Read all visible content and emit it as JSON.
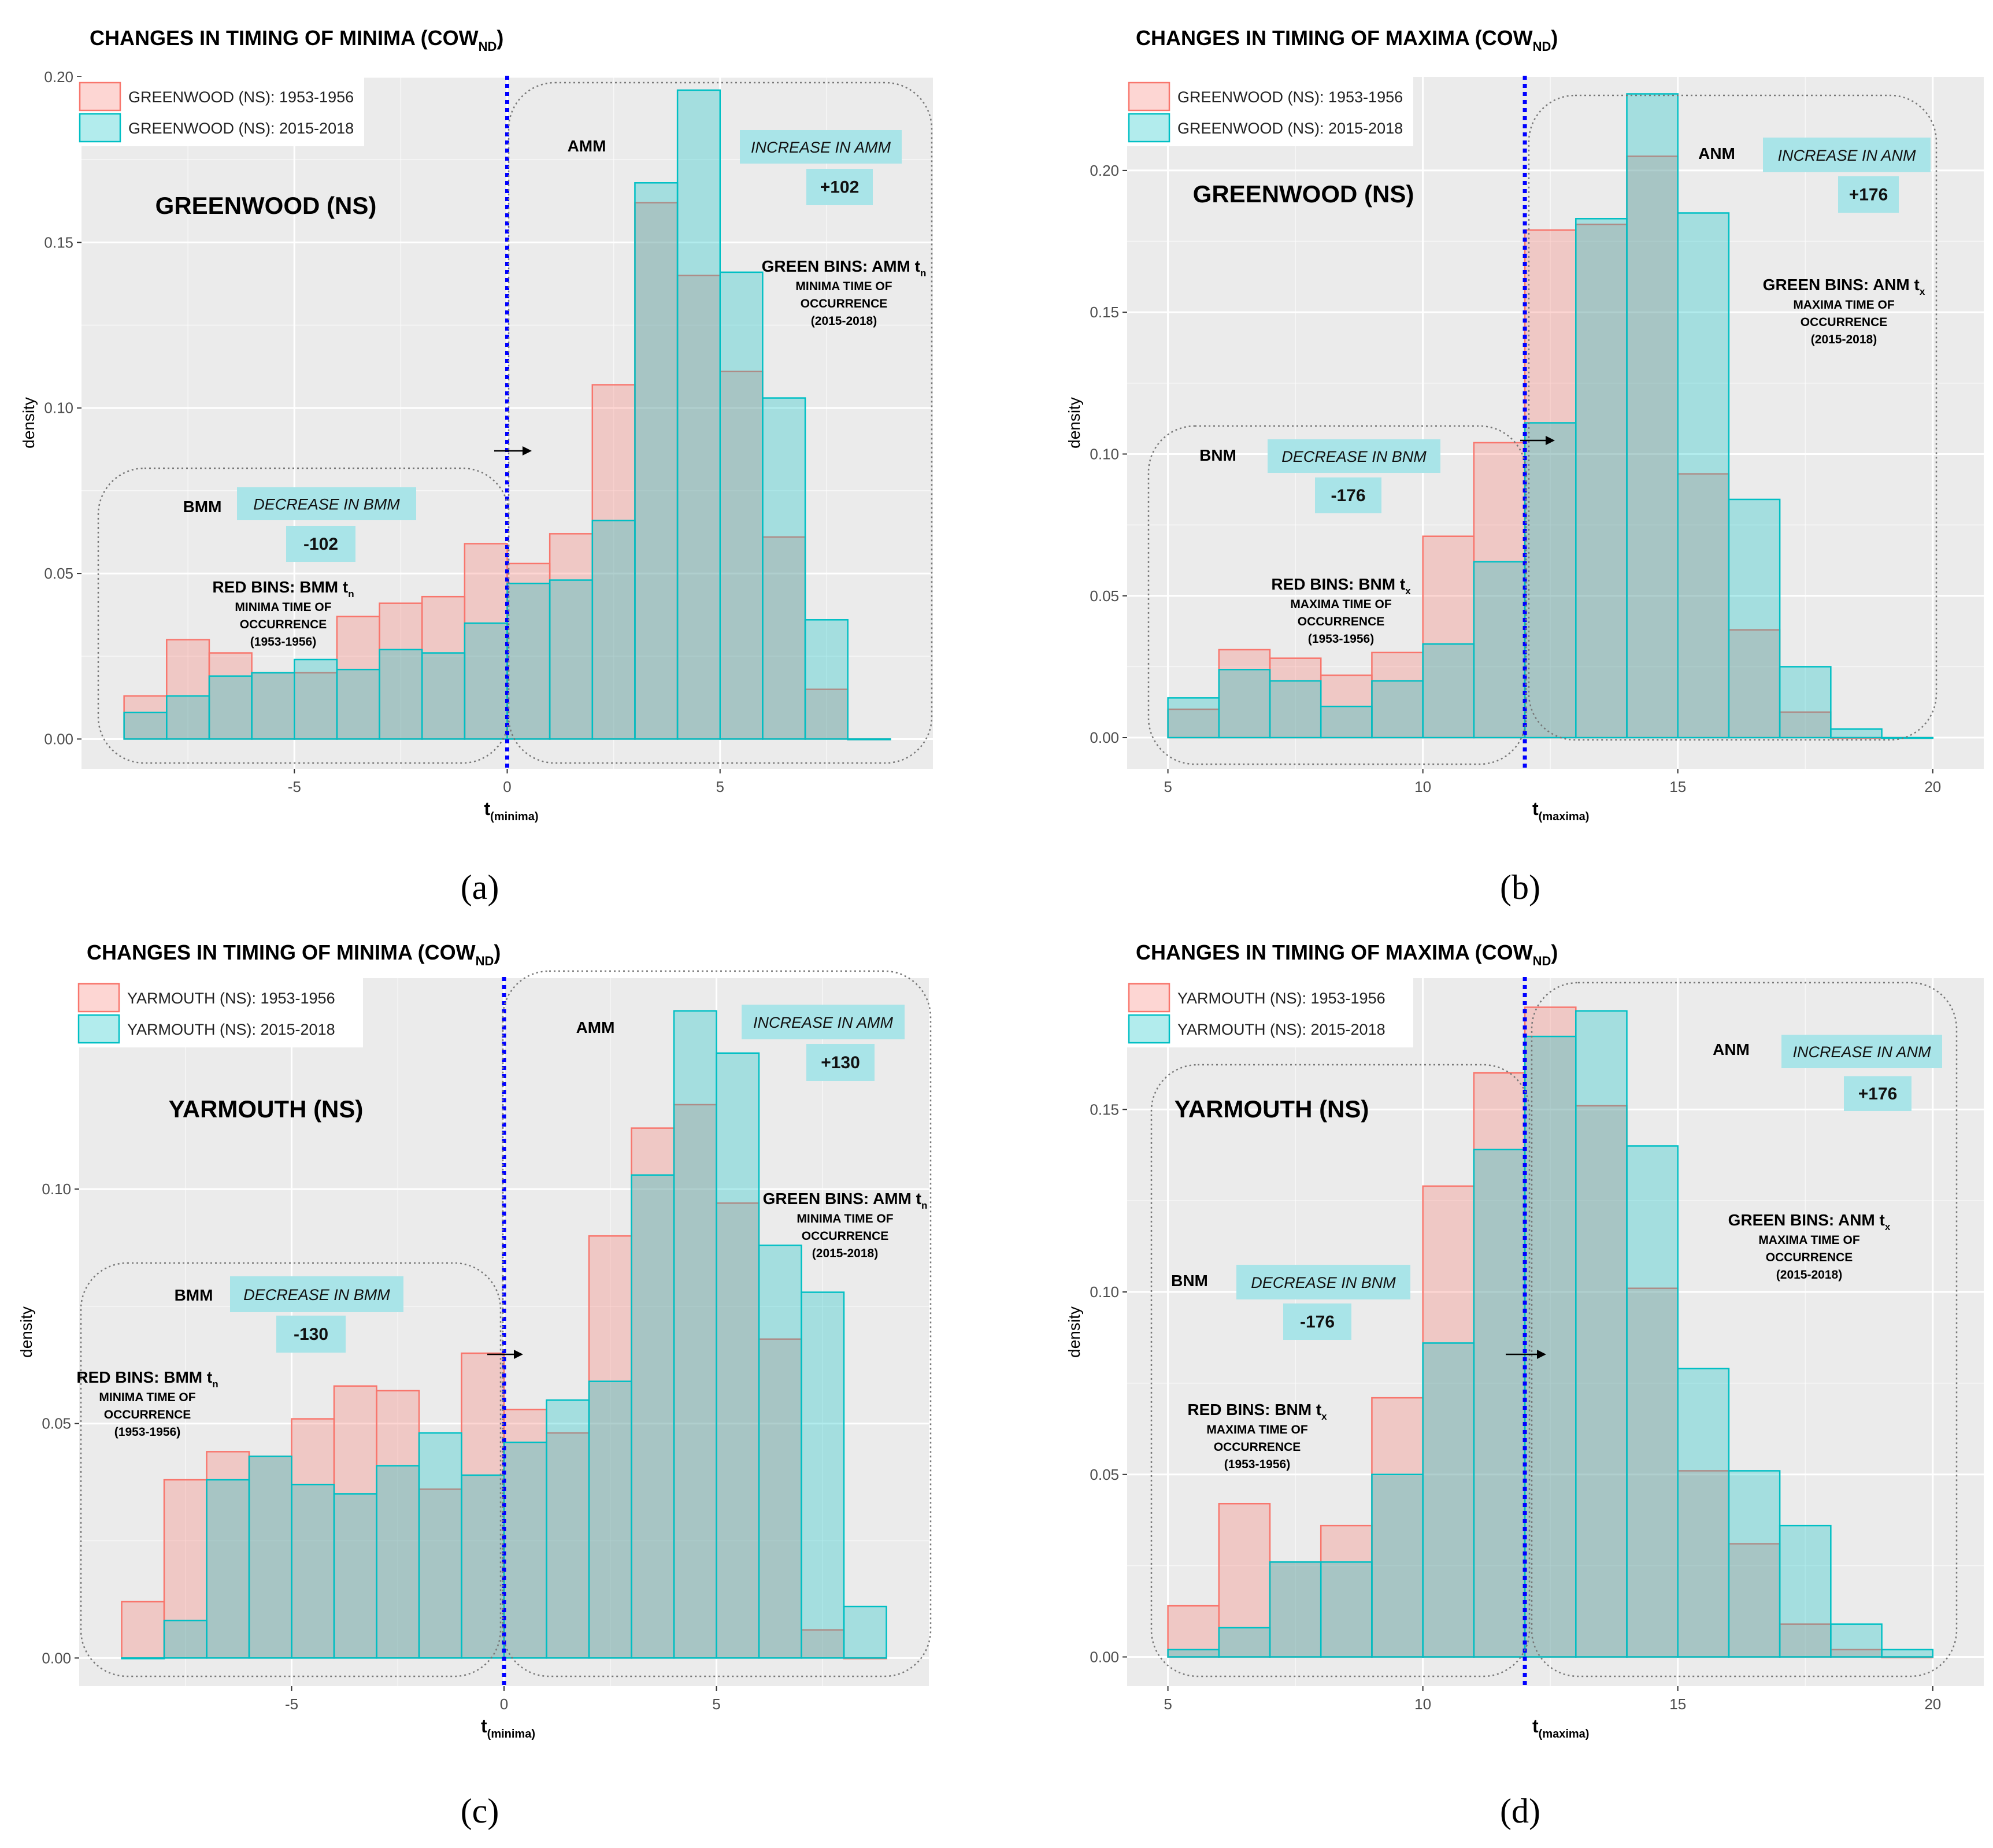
{
  "colors": {
    "series_old_fill": "#F8766D",
    "series_new_fill": "#00BFC4",
    "panel_bg": "#EBEBEB",
    "grid": "#FFFFFF",
    "threshold_line": "#0000FF",
    "label_bg": "#A9E4E8"
  },
  "panels": [
    {
      "tag": "(a)",
      "title_main": "CHANGES IN TIMING OF MINIMA (COW",
      "title_sub": "ND",
      "title_end": ")",
      "xlabel_main": "t",
      "xlabel_sub": "(minima)",
      "ylabel": "density",
      "station_label": "GREENWOOD (NS)",
      "legend": [
        "GREENWOOD (NS): 1953-1956",
        "GREENWOOD (NS): 2015-2018"
      ],
      "left_box": {
        "name": "BMM",
        "change_label": "DECREASE IN BMM",
        "change_value": "-102"
      },
      "right_box": {
        "name": "AMM",
        "change_label": "INCREASE IN AMM",
        "change_value": "+102"
      },
      "red_note": {
        "head": "RED BINS: BMM t",
        "sub": "n",
        "lines": [
          "MINIMA TIME OF",
          "OCCURRENCE",
          "(1953-1956)"
        ]
      },
      "green_note": {
        "head": "GREEN BINS: AMM t",
        "sub": "n",
        "lines": [
          "MINIMA TIME OF",
          "OCCURRENCE",
          "(2015-2018)"
        ]
      },
      "chart_data": {
        "type": "bar",
        "x_bin_starts": [
          -9,
          -8,
          -7,
          -6,
          -5,
          -4,
          -3,
          -2,
          -1,
          0,
          1,
          2,
          3,
          4,
          5,
          6,
          7,
          8
        ],
        "bin_width": 1,
        "series": [
          {
            "name": "GREENWOOD (NS): 1953-1956",
            "values": [
              0.013,
              0.03,
              0.026,
              0.02,
              0.02,
              0.037,
              0.041,
              0.043,
              0.059,
              0.053,
              0.062,
              0.107,
              0.162,
              0.14,
              0.111,
              0.061,
              0.015,
              0.0
            ]
          },
          {
            "name": "GREENWOOD (NS): 2015-2018",
            "values": [
              0.008,
              0.013,
              0.019,
              0.02,
              0.024,
              0.021,
              0.027,
              0.026,
              0.035,
              0.047,
              0.048,
              0.066,
              0.168,
              0.196,
              0.141,
              0.103,
              0.036,
              0.0
            ]
          }
        ],
        "xlim": [
          -10,
          10
        ],
        "ylim": [
          -0.009,
          0.2
        ],
        "xticks": [
          -5,
          0,
          5
        ],
        "xtick_labels": [
          "-5",
          "0",
          "5"
        ],
        "yticks": [
          0.0,
          0.05,
          0.1,
          0.15,
          0.2
        ],
        "ytick_labels": [
          "0.00",
          "0.05",
          "0.10",
          "0.15",
          "0.20"
        ],
        "threshold_x": 0,
        "grid": true,
        "legend_position": "top-left"
      }
    },
    {
      "tag": "(b)",
      "title_main": "CHANGES IN TIMING OF MAXIMA (COW",
      "title_sub": "ND",
      "title_end": ")",
      "xlabel_main": "t",
      "xlabel_sub": "(maxima)",
      "ylabel": "density",
      "station_label": "GREENWOOD (NS)",
      "legend": [
        "GREENWOOD (NS): 1953-1956",
        "GREENWOOD (NS): 2015-2018"
      ],
      "left_box": {
        "name": "BNM",
        "change_label": "DECREASE IN BNM",
        "change_value": "-176"
      },
      "right_box": {
        "name": "ANM",
        "change_label": "INCREASE IN ANM",
        "change_value": "+176"
      },
      "red_note": {
        "head": "RED BINS: BNM t",
        "sub": "x",
        "lines": [
          "MAXIMA TIME OF",
          "OCCURRENCE",
          "(1953-1956)"
        ]
      },
      "green_note": {
        "head": "GREEN BINS: ANM t",
        "sub": "x",
        "lines": [
          "MAXIMA TIME OF",
          "OCCURRENCE",
          "(2015-2018)"
        ]
      },
      "chart_data": {
        "type": "bar",
        "x_bin_starts": [
          5,
          6,
          7,
          8,
          9,
          10,
          11,
          12,
          13,
          14,
          15,
          16,
          17,
          18,
          19
        ],
        "bin_width": 1,
        "series": [
          {
            "name": "GREENWOOD (NS): 1953-1956",
            "values": [
              0.01,
              0.031,
              0.028,
              0.022,
              0.03,
              0.071,
              0.104,
              0.179,
              0.181,
              0.205,
              0.093,
              0.038,
              0.009,
              0.0,
              0.0
            ]
          },
          {
            "name": "GREENWOOD (NS): 2015-2018",
            "values": [
              0.014,
              0.024,
              0.02,
              0.011,
              0.02,
              0.033,
              0.062,
              0.111,
              0.183,
              0.227,
              0.185,
              0.084,
              0.025,
              0.003,
              0.0
            ]
          }
        ],
        "xlim": [
          4.2,
          21.0
        ],
        "ylim": [
          -0.011,
          0.233
        ],
        "xticks": [
          5,
          10,
          15,
          20
        ],
        "xtick_labels": [
          "5",
          "10",
          "15",
          "20"
        ],
        "yticks": [
          0.0,
          0.05,
          0.1,
          0.15,
          0.2
        ],
        "ytick_labels": [
          "0.00",
          "0.05",
          "0.10",
          "0.15",
          "0.20"
        ],
        "threshold_x": 12,
        "grid": true,
        "legend_position": "top-left"
      }
    },
    {
      "tag": "(c)",
      "title_main": "CHANGES IN TIMING OF MINIMA (COW",
      "title_sub": "ND",
      "title_end": ")",
      "xlabel_main": "t",
      "xlabel_sub": "(minima)",
      "ylabel": "density",
      "station_label": "YARMOUTH (NS)",
      "legend": [
        "YARMOUTH (NS): 1953-1956",
        "YARMOUTH (NS): 2015-2018"
      ],
      "left_box": {
        "name": "BMM",
        "change_label": "DECREASE IN BMM",
        "change_value": "-130"
      },
      "right_box": {
        "name": "AMM",
        "change_label": "INCREASE IN AMM",
        "change_value": "+130"
      },
      "red_note": {
        "head": "RED BINS: BMM t",
        "sub": "n",
        "lines": [
          "MINIMA TIME OF",
          "OCCURRENCE",
          "(1953-1956)"
        ]
      },
      "green_note": {
        "head": "GREEN BINS: AMM t",
        "sub": "n",
        "lines": [
          "MINIMA TIME OF",
          "OCCURRENCE",
          "(2015-2018)"
        ]
      },
      "chart_data": {
        "type": "bar",
        "x_bin_starts": [
          -9,
          -8,
          -7,
          -6,
          -5,
          -4,
          -3,
          -2,
          -1,
          0,
          1,
          2,
          3,
          4,
          5,
          6,
          7,
          8
        ],
        "bin_width": 1,
        "series": [
          {
            "name": "YARMOUTH (NS): 1953-1956",
            "values": [
              0.012,
              0.038,
              0.044,
              0.043,
              0.051,
              0.058,
              0.057,
              0.036,
              0.065,
              0.053,
              0.048,
              0.09,
              0.113,
              0.118,
              0.097,
              0.068,
              0.006,
              0.0
            ]
          },
          {
            "name": "YARMOUTH (NS): 2015-2018",
            "values": [
              0.0,
              0.008,
              0.038,
              0.043,
              0.037,
              0.035,
              0.041,
              0.048,
              0.039,
              0.046,
              0.055,
              0.059,
              0.103,
              0.138,
              0.129,
              0.088,
              0.078,
              0.011
            ]
          }
        ],
        "xlim": [
          -10,
          10
        ],
        "ylim": [
          -0.006,
          0.145
        ],
        "xticks": [
          -5,
          0,
          5
        ],
        "xtick_labels": [
          "-5",
          "0",
          "5"
        ],
        "yticks": [
          0.0,
          0.05,
          0.1
        ],
        "ytick_labels": [
          "0.00",
          "0.05",
          "0.10"
        ],
        "threshold_x": 0,
        "grid": true,
        "legend_position": "top-left"
      }
    },
    {
      "tag": "(d)",
      "title_main": "CHANGES IN TIMING OF MAXIMA (COW",
      "title_sub": "ND",
      "title_end": ")",
      "xlabel_main": "t",
      "xlabel_sub": "(maxima)",
      "ylabel": "density",
      "station_label": "YARMOUTH (NS)",
      "legend": [
        "YARMOUTH (NS): 1953-1956",
        "YARMOUTH (NS): 2015-2018"
      ],
      "left_box": {
        "name": "BNM",
        "change_label": "DECREASE IN BNM",
        "change_value": "-176"
      },
      "right_box": {
        "name": "ANM",
        "change_label": "INCREASE IN ANM",
        "change_value": "+176"
      },
      "red_note": {
        "head": "RED BINS: BNM t",
        "sub": "x",
        "lines": [
          "MAXIMA TIME OF",
          "OCCURRENCE",
          "(1953-1956)"
        ]
      },
      "green_note": {
        "head": "GREEN BINS: ANM t",
        "sub": "x",
        "lines": [
          "MAXIMA TIME OF",
          "OCCURRENCE",
          "(2015-2018)"
        ]
      },
      "chart_data": {
        "type": "bar",
        "x_bin_starts": [
          5,
          6,
          7,
          8,
          9,
          10,
          11,
          12,
          13,
          14,
          15,
          16,
          17,
          18,
          19
        ],
        "bin_width": 1,
        "series": [
          {
            "name": "YARMOUTH (NS): 1953-1956",
            "values": [
              0.014,
              0.042,
              0.026,
              0.036,
              0.071,
              0.129,
              0.16,
              0.178,
              0.151,
              0.101,
              0.051,
              0.031,
              0.009,
              0.002,
              0.0
            ]
          },
          {
            "name": "YARMOUTH (NS): 2015-2018",
            "values": [
              0.002,
              0.008,
              0.026,
              0.026,
              0.05,
              0.086,
              0.139,
              0.17,
              0.177,
              0.14,
              0.079,
              0.051,
              0.036,
              0.009,
              0.002
            ]
          }
        ],
        "xlim": [
          4.2,
          21.0
        ],
        "ylim": [
          -0.008,
          0.186
        ],
        "xticks": [
          5,
          10,
          15,
          20
        ],
        "xtick_labels": [
          "5",
          "10",
          "15",
          "20"
        ],
        "yticks": [
          0.0,
          0.05,
          0.1,
          0.15
        ],
        "ytick_labels": [
          "0.00",
          "0.05",
          "0.10",
          "0.15"
        ],
        "threshold_x": 12,
        "grid": true,
        "legend_position": "top-left"
      }
    }
  ]
}
